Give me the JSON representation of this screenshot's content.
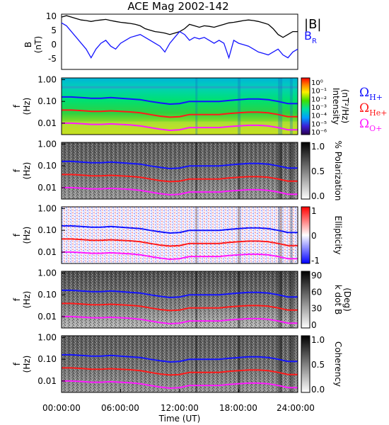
{
  "chart_data": {
    "title": "ACE Mag 2002-142",
    "type": "multi-panel-spectrogram",
    "x_axis": {
      "label": "Time (UT)",
      "ticks": [
        "00:00:00",
        "06:00:00",
        "12:00:00",
        "18:00:00",
        "24:00:00"
      ],
      "range_hours": [
        0,
        24
      ]
    },
    "panels": [
      {
        "type": "line",
        "ylabel_main": "B",
        "ylabel_sub": "(nT)",
        "yticks": [
          "10",
          "5",
          "0",
          "-5"
        ],
        "ylim": [
          -8,
          11
        ],
        "legend": [
          {
            "label": "|B|",
            "color": "#000000"
          },
          {
            "label": "B",
            "sub": "R",
            "color": "#1414ff"
          }
        ],
        "series": [
          {
            "name": "|B|",
            "color": "#000000",
            "x": [
              0,
              0.5,
              1,
              1.5,
              2,
              2.5,
              3,
              3.5,
              4,
              4.5,
              5,
              5.5,
              6,
              6.5,
              7,
              7.5,
              8,
              8.5,
              9,
              9.5,
              10,
              10.5,
              11,
              11.5,
              12,
              12.5,
              13,
              13.5,
              14,
              14.5,
              15,
              15.5,
              16,
              16.5,
              17,
              17.5,
              18,
              18.5,
              19,
              19.5,
              20,
              20.5,
              21,
              21.5,
              22,
              22.5,
              23,
              23.5,
              24
            ],
            "y": [
              10,
              10.5,
              10,
              9.5,
              9,
              8.8,
              8.5,
              8.8,
              9,
              9.2,
              8.8,
              8.5,
              8.2,
              8,
              7.8,
              7.5,
              7,
              6,
              5.5,
              5,
              4.8,
              4.5,
              4,
              4.5,
              5,
              6,
              7.5,
              7,
              6.5,
              7,
              6.8,
              6.5,
              7,
              7.5,
              8,
              8.2,
              8.5,
              8.8,
              9,
              8.8,
              8.5,
              8,
              7.5,
              6,
              4,
              3,
              4,
              5,
              5
            ]
          },
          {
            "name": "B_R",
            "color": "#1414ff",
            "x": [
              0,
              0.5,
              1,
              1.5,
              2,
              2.5,
              3,
              3.5,
              4,
              4.5,
              5,
              5.5,
              6,
              6.5,
              7,
              7.5,
              8,
              8.5,
              9,
              9.5,
              10,
              10.5,
              11,
              11.5,
              12,
              12.5,
              13,
              13.5,
              14,
              14.5,
              15,
              15.5,
              16,
              16.5,
              17,
              17.5,
              18,
              18.5,
              19,
              19.5,
              20,
              20.5,
              21,
              21.5,
              22,
              22.5,
              23,
              23.5,
              24
            ],
            "y": [
              8,
              7,
              5,
              3,
              1,
              -1,
              -4,
              -1,
              1,
              2,
              0,
              -1,
              1,
              2,
              3,
              3.5,
              4,
              3,
              2,
              1,
              0,
              -2,
              1,
              3,
              5,
              4,
              2,
              3,
              2.5,
              3,
              2,
              1,
              2,
              1,
              -4,
              2,
              1,
              0.5,
              0,
              -1,
              -2,
              -2.5,
              -3,
              -2,
              -1,
              -3,
              -4,
              -2,
              -1
            ]
          }
        ]
      },
      {
        "type": "spectrogram",
        "ylabel_main": "f",
        "ylabel_sub": "(Hz)",
        "yticks": [
          "1.00",
          "0.10",
          "0.01"
        ],
        "ylim": [
          0.003,
          1.2
        ],
        "yscale": "log",
        "colorbar": {
          "label": "Intensity",
          "sublabel": "(nT²/Hz)",
          "ticks": [
            "10⁰",
            "10⁻¹",
            "10⁻²",
            "10⁻³",
            "10⁻⁴",
            "10⁻⁵",
            "10⁻⁶"
          ],
          "colormap": "rainbow"
        },
        "legend": [
          {
            "label": "Ω",
            "sub": "H+",
            "color": "#1414ff"
          },
          {
            "label": "Ω",
            "sub": "He+",
            "color": "#ff1a1a"
          },
          {
            "label": "Ω",
            "sub": "O+",
            "color": "#ff1aff"
          }
        ]
      },
      {
        "type": "spectrogram",
        "ylabel_main": "f",
        "ylabel_sub": "(Hz)",
        "yticks": [
          "1.00",
          "0.10",
          "0.01"
        ],
        "yscale": "log",
        "colorbar": {
          "label": "% Polarization",
          "ticks": [
            "1.0",
            "0.5",
            "0.0"
          ],
          "colormap": "gray"
        }
      },
      {
        "type": "spectrogram",
        "ylabel_main": "f",
        "ylabel_sub": "(Hz)",
        "yticks": [
          "1.00",
          "0.10",
          "0.01"
        ],
        "yscale": "log",
        "colorbar": {
          "label": "Ellipticity",
          "ticks": [
            "1",
            "0",
            "-1"
          ],
          "colormap": "blue-white-red"
        }
      },
      {
        "type": "spectrogram",
        "ylabel_main": "f",
        "ylabel_sub": "(Hz)",
        "yticks": [
          "1.00",
          "0.10",
          "0.01"
        ],
        "yscale": "log",
        "colorbar": {
          "label": "k dot B",
          "sublabel": "(Deg)",
          "ticks": [
            "90",
            "60",
            "30",
            "0"
          ],
          "colormap": "gray"
        }
      },
      {
        "type": "spectrogram",
        "ylabel_main": "f",
        "ylabel_sub": "(Hz)",
        "yticks": [
          "1.00",
          "0.10",
          "0.01"
        ],
        "yscale": "log",
        "colorbar": {
          "label": "Coherency",
          "ticks": [
            "1.0",
            "0.5",
            "0.0"
          ],
          "colormap": "gray"
        }
      }
    ],
    "gyrofrequency_lines": [
      {
        "name": "H+",
        "color": "#1414ff",
        "x": [
          0,
          1,
          2,
          3,
          4,
          5,
          6,
          7,
          8,
          9,
          10,
          11,
          12,
          13,
          14,
          15,
          16,
          17,
          18,
          19,
          20,
          21,
          22,
          23,
          24
        ],
        "y": [
          0.16,
          0.16,
          0.15,
          0.14,
          0.14,
          0.15,
          0.14,
          0.13,
          0.12,
          0.1,
          0.085,
          0.075,
          0.08,
          0.1,
          0.1,
          0.1,
          0.1,
          0.11,
          0.12,
          0.13,
          0.13,
          0.12,
          0.1,
          0.08,
          0.08
        ]
      },
      {
        "name": "He+",
        "color": "#ff1a1a",
        "x": [
          0,
          1,
          2,
          3,
          4,
          5,
          6,
          7,
          8,
          9,
          10,
          11,
          12,
          13,
          14,
          15,
          16,
          17,
          18,
          19,
          20,
          21,
          22,
          23,
          24
        ],
        "y": [
          0.04,
          0.04,
          0.038,
          0.035,
          0.035,
          0.037,
          0.035,
          0.033,
          0.03,
          0.025,
          0.021,
          0.019,
          0.02,
          0.025,
          0.025,
          0.025,
          0.025,
          0.028,
          0.03,
          0.032,
          0.032,
          0.03,
          0.025,
          0.02,
          0.02
        ]
      },
      {
        "name": "O+",
        "color": "#ff1aff",
        "x": [
          0,
          1,
          2,
          3,
          4,
          5,
          6,
          7,
          8,
          9,
          10,
          11,
          12,
          13,
          14,
          15,
          16,
          17,
          18,
          19,
          20,
          21,
          22,
          23,
          24
        ],
        "y": [
          0.01,
          0.01,
          0.0095,
          0.0088,
          0.0088,
          0.0093,
          0.0088,
          0.0083,
          0.0075,
          0.0063,
          0.0053,
          0.0047,
          0.005,
          0.0063,
          0.0063,
          0.0063,
          0.0063,
          0.007,
          0.0075,
          0.008,
          0.008,
          0.0075,
          0.0063,
          0.005,
          0.005
        ]
      }
    ]
  }
}
